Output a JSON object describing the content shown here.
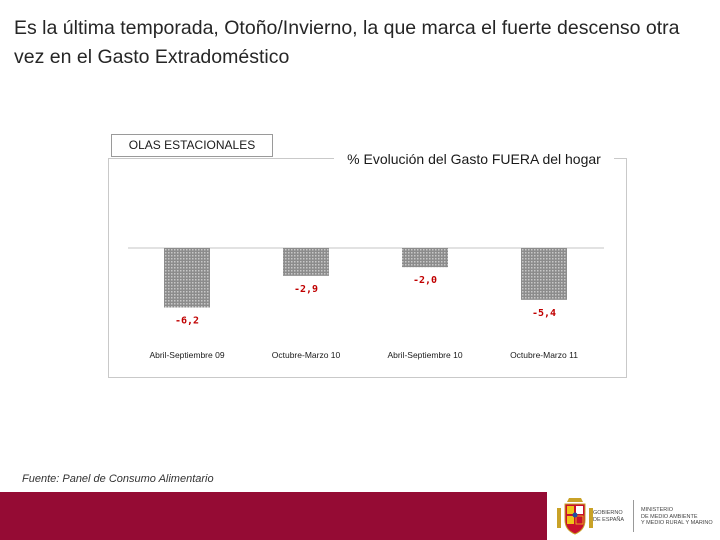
{
  "slide": {
    "headline": "Es la última temporada, Otoño/Invierno, la que marca el fuerte descenso otra vez en el Gasto Extradoméstico",
    "source": "Fuente: Panel de Consumo Alimentario"
  },
  "legend": {
    "label": "OLAS ESTACIONALES"
  },
  "footer": {
    "gobierno": "GOBIERNO\nDE ESPAÑA",
    "ministerio": "MINISTERIO\nDE MEDIO AMBIENTE\nY MEDIO RURAL Y MARINO"
  },
  "colors": {
    "footer_band": "#950b34",
    "bar_fill": "#8c8c8c",
    "value_label": "#c00000"
  },
  "icons": {
    "coat_of_arms": "spanish-coat-of-arms-icon"
  },
  "chart_data": {
    "type": "bar",
    "title": "% Evolución del Gasto FUERA del hogar",
    "categories": [
      "Abril-Septiembre 09",
      "Octubre-Marzo 10",
      "Abril-Septiembre 10",
      "Octubre-Marzo 11"
    ],
    "values": [
      -6.2,
      -2.9,
      -2.0,
      -5.4
    ],
    "value_labels": [
      "-6,2",
      "-2,9",
      "-2,0",
      "-5,4"
    ],
    "xlabel": "",
    "ylabel": "",
    "ylim": [
      -10,
      10
    ],
    "grid": false,
    "legend": "top-left"
  }
}
